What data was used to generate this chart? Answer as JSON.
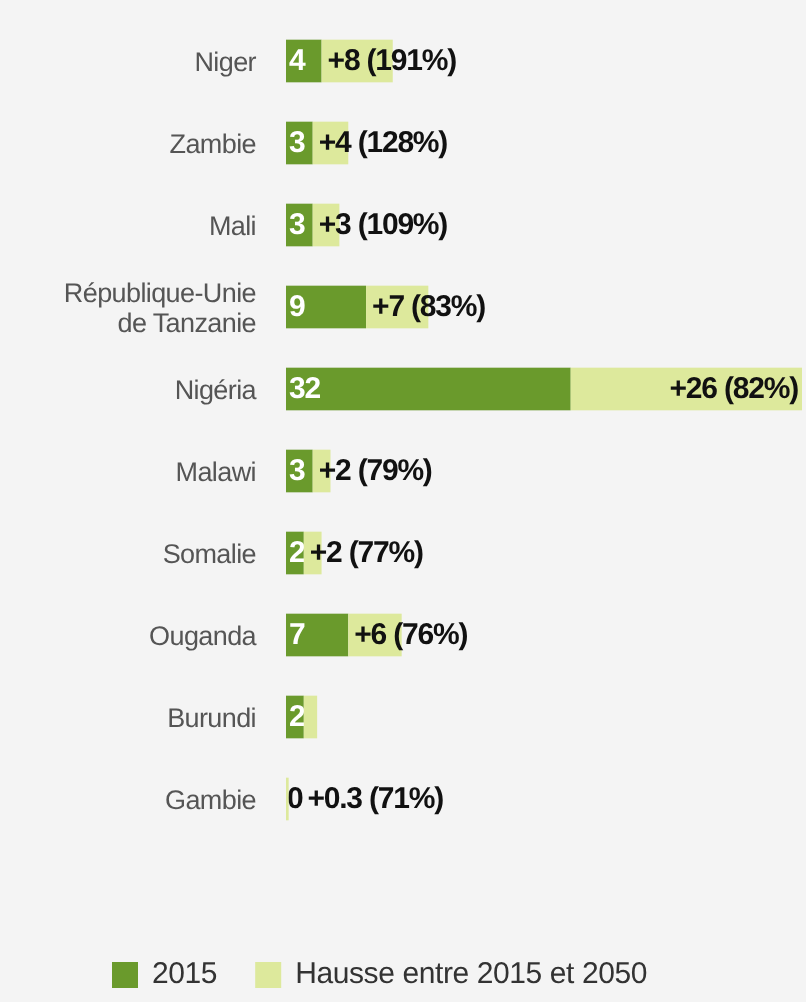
{
  "chart_data": {
    "type": "bar",
    "orientation": "horizontal",
    "stacked": true,
    "categories": [
      "Niger",
      "Zambie",
      "Mali",
      "République-Unie de Tanzanie",
      "Nigéria",
      "Malawi",
      "Somalie",
      "Ouganda",
      "Burundi",
      "Gambie"
    ],
    "series": [
      {
        "name": "2015",
        "color": "#6a9a2c",
        "values": [
          4,
          3,
          3,
          9,
          32,
          3,
          2,
          7,
          2,
          0
        ],
        "value_labels": [
          "4",
          "3",
          "3",
          "9",
          "32",
          "3",
          "2",
          "7",
          "2",
          "0"
        ]
      },
      {
        "name": "Hausse entre 2015 et 2050",
        "color": "#dde99c",
        "values": [
          8,
          4,
          3,
          7,
          26,
          2,
          2,
          6,
          1.5,
          0.3
        ],
        "value_labels": [
          "+8 (191%)",
          "+4 (128%)",
          "+3 (109%)",
          "+7 (83%)",
          "+26 (82%)",
          "+2 (79%)",
          "+2 (77%)",
          "+6 (76%)",
          null,
          "+0.3 (71%)"
        ]
      }
    ],
    "legend": "bottom"
  }
}
